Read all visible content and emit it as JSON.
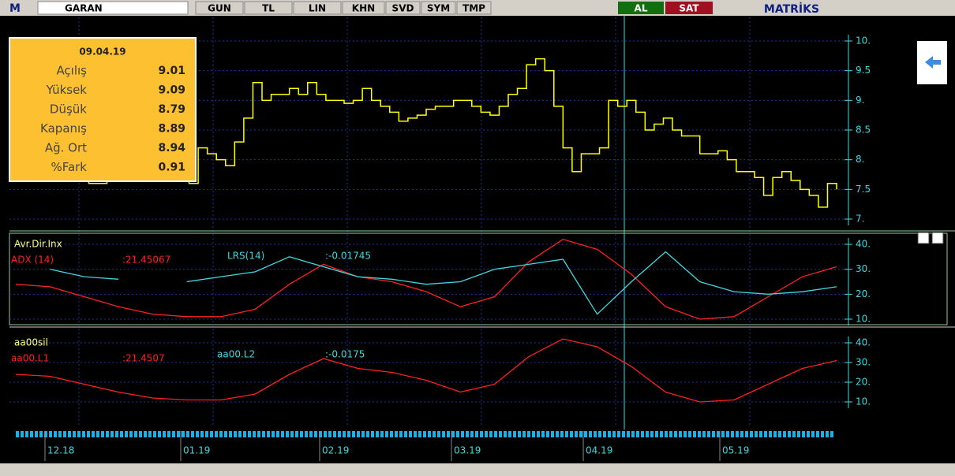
{
  "toolbar": {
    "logo": "M",
    "symbol": "GARAN",
    "buttons": [
      "GUN",
      "TL",
      "LIN",
      "KHN",
      "SVD",
      "SYM",
      "TMP"
    ],
    "buy": "AL",
    "sell": "SAT",
    "brand": "MATRİKS"
  },
  "info_box": {
    "date": "09.04.19",
    "rows": [
      {
        "label": "Açılış",
        "value": 9.01
      },
      {
        "label": "Yüksek",
        "value": 9.09
      },
      {
        "label": "Düşük",
        "value": 8.79
      },
      {
        "label": "Kapanış",
        "value": 8.89
      },
      {
        "label": "Ağ. Ort",
        "value": 8.94
      },
      {
        "label": "%Fark",
        "value": 0.91
      }
    ]
  },
  "price_panel": {
    "type": "line",
    "color": "#ffff00",
    "ylim": [
      7,
      10
    ],
    "yticks": [
      {
        "value": 7,
        "label": "7."
      },
      {
        "value": 7.5,
        "label": "7.5"
      },
      {
        "value": 8,
        "label": "8."
      },
      {
        "value": 8.5,
        "label": "8.5"
      },
      {
        "value": 9,
        "label": "9."
      },
      {
        "value": 9.5,
        "label": "9.5"
      },
      {
        "value": 10,
        "label": "10."
      }
    ],
    "values": [
      7.8,
      7.7,
      7.75,
      7.8,
      7.7,
      7.8,
      7.7,
      7.65,
      7.6,
      7.6,
      7.7,
      7.8,
      7.9,
      7.8,
      7.7,
      7.8,
      7.9,
      7.8,
      7.7,
      7.6,
      8.2,
      8.1,
      8.0,
      7.9,
      8.3,
      8.7,
      9.3,
      9.0,
      9.1,
      9.1,
      9.2,
      9.1,
      9.3,
      9.1,
      9.0,
      9.0,
      8.95,
      9.0,
      9.2,
      9.0,
      8.9,
      8.8,
      8.65,
      8.7,
      8.75,
      8.85,
      8.9,
      8.9,
      9.0,
      9.0,
      8.9,
      8.8,
      8.75,
      8.9,
      9.1,
      9.2,
      9.6,
      9.7,
      9.5,
      8.9,
      8.2,
      7.8,
      8.1,
      8.1,
      8.2,
      9.0,
      8.9,
      9.0,
      8.8,
      8.5,
      8.6,
      8.7,
      8.5,
      8.4,
      8.4,
      8.1,
      8.1,
      8.15,
      8.0,
      7.8,
      7.8,
      7.7,
      7.4,
      7.7,
      7.8,
      7.65,
      7.5,
      7.4,
      7.2,
      7.6,
      7.5
    ]
  },
  "indicator_panels": [
    {
      "type": "line",
      "title": "Avr.Dir.Inx",
      "ylim": [
        10,
        40
      ],
      "yticks": [
        {
          "value": 10,
          "label": "10."
        },
        {
          "value": 20,
          "label": "20."
        },
        {
          "value": 30,
          "label": "30."
        },
        {
          "value": 40,
          "label": "40."
        }
      ],
      "series": [
        {
          "name": "ADX (14)",
          "readout": ":21.45067",
          "color": "#ff2020",
          "values": [
            24,
            23,
            19,
            15,
            12,
            11,
            11,
            14,
            24,
            32,
            27,
            25,
            21,
            15,
            19,
            33,
            42,
            38,
            28,
            15,
            10,
            11,
            19,
            27,
            31
          ]
        },
        {
          "name": "LRS(14)",
          "readout": ":-0.01745",
          "color": "#40d8e0",
          "values": [
            null,
            30,
            27,
            26,
            null,
            25,
            27,
            29,
            35,
            31,
            27,
            26,
            24,
            25,
            30,
            32,
            34,
            12,
            25,
            37,
            25,
            21,
            20,
            21,
            23
          ]
        }
      ]
    },
    {
      "type": "line",
      "title": "aa00sil",
      "ylim": [
        10,
        40
      ],
      "yticks": [
        {
          "value": 10,
          "label": "10."
        },
        {
          "value": 20,
          "label": "20."
        },
        {
          "value": 30,
          "label": "30."
        },
        {
          "value": 40,
          "label": "40."
        }
      ],
      "series": [
        {
          "name": "aa00.L1",
          "readout": ":21.4507",
          "color": "#ff2020",
          "values": [
            24,
            23,
            19,
            15,
            12,
            11,
            11,
            14,
            24,
            32,
            27,
            25,
            21,
            15,
            19,
            33,
            42,
            38,
            28,
            15,
            10,
            11,
            19,
            27,
            31
          ]
        },
        {
          "name": "aa00.L2",
          "readout": ":-0.0175",
          "color": "#40d8e0",
          "values": []
        }
      ]
    }
  ],
  "time_axis": {
    "labels": [
      "12.18",
      "01.19",
      "02.19",
      "03.19",
      "04.19",
      "05.19"
    ]
  }
}
